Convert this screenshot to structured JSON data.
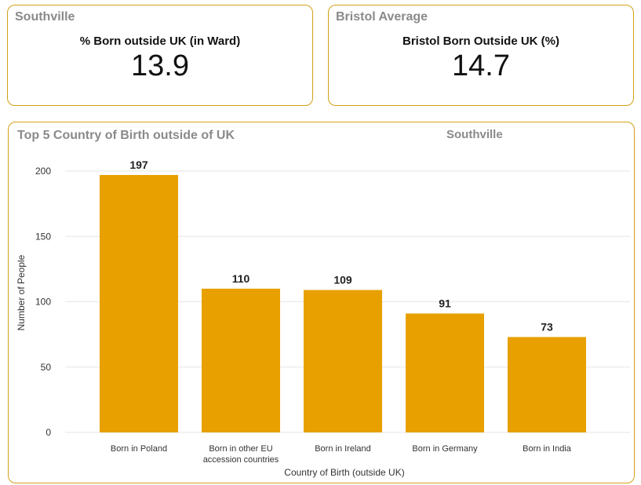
{
  "kpi_ward": {
    "title": "Southville",
    "label": "% Born outside UK (in Ward)",
    "value": "13.9"
  },
  "kpi_bristol": {
    "title": "Bristol Average",
    "label": "Bristol Born Outside UK (%)",
    "value": "14.7"
  },
  "chart": {
    "title": "Top 5 Country of Birth outside of UK",
    "subtitle": "Southville"
  },
  "colors": {
    "accent": "#e8a000",
    "border": "#d4a017"
  },
  "chart_data": {
    "type": "bar",
    "title": "Top 5 Country of Birth outside of UK",
    "subtitle": "Southville",
    "categories": [
      [
        "Born in Poland"
      ],
      [
        "Born in other EU",
        "accession countries"
      ],
      [
        "Born in Ireland"
      ],
      [
        "Born in Germany"
      ],
      [
        "Born in India"
      ]
    ],
    "values": [
      197,
      110,
      109,
      91,
      73
    ],
    "xlabel": "Country of Birth (outside UK)",
    "ylabel": "Number of People",
    "ylim": [
      0,
      200
    ],
    "yticks": [
      0,
      50,
      100,
      150,
      200
    ],
    "grid": true,
    "color": "#e8a000"
  }
}
